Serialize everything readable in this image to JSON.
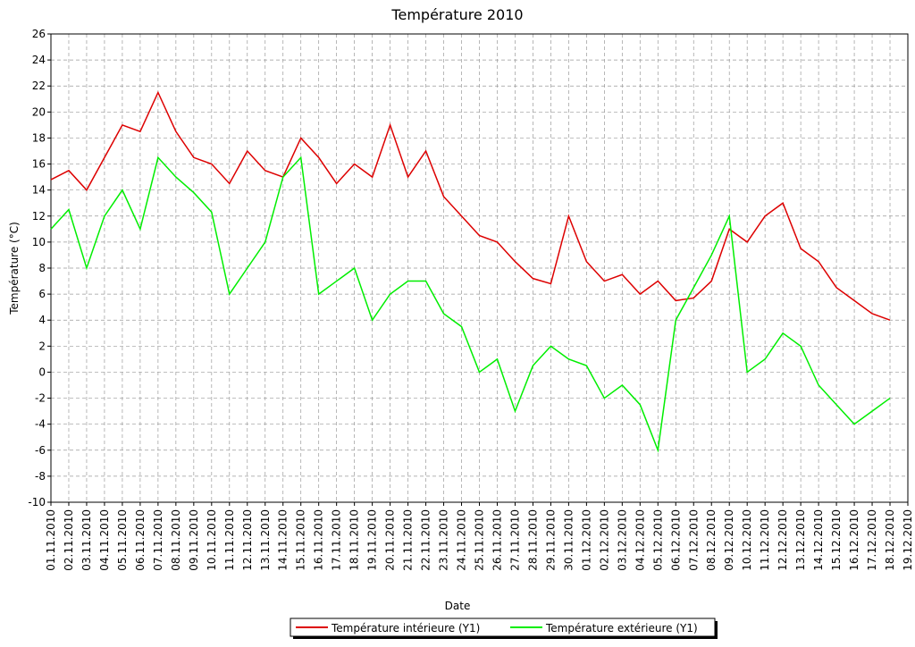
{
  "chart_data": {
    "type": "line",
    "title": "Température 2010",
    "x_label": "Date",
    "y_label": "Température (°C)",
    "x": [
      "01.11.2010",
      "02.11.2010",
      "03.11.2010",
      "04.11.2010",
      "05.11.2010",
      "06.11.2010",
      "07.11.2010",
      "08.11.2010",
      "09.11.2010",
      "10.11.2010",
      "11.11.2010",
      "12.11.2010",
      "13.11.2010",
      "14.11.2010",
      "15.11.2010",
      "16.11.2010",
      "17.11.2010",
      "18.11.2010",
      "19.11.2010",
      "20.11.2010",
      "21.11.2010",
      "22.11.2010",
      "23.11.2010",
      "24.11.2010",
      "25.11.2010",
      "26.11.2010",
      "27.11.2010",
      "28.11.2010",
      "29.11.2010",
      "30.11.2010",
      "01.12.2010",
      "02.12.2010",
      "03.12.2010",
      "04.12.2010",
      "05.12.2010",
      "06.12.2010",
      "07.12.2010",
      "08.12.2010",
      "09.12.2010",
      "10.12.2010",
      "11.12.2010",
      "12.12.2010",
      "13.12.2010",
      "14.12.2010",
      "15.12.2010",
      "16.12.2010",
      "17.12.2010",
      "18.12.2010",
      "19.12.2010"
    ],
    "series": [
      {
        "name": "Température intérieure (Y1)",
        "color": "#dd0000",
        "values": [
          14.8,
          15.5,
          14,
          16.5,
          19,
          18.5,
          21.5,
          18.5,
          16.5,
          16,
          14.5,
          17,
          15.5,
          15,
          18,
          16.5,
          14.5,
          16,
          15,
          19,
          15,
          17,
          13.5,
          12,
          10.5,
          10,
          8.5,
          7.2,
          6.8,
          12,
          8.5,
          7,
          7.5,
          6,
          7,
          5.5,
          5.7,
          7,
          11,
          10,
          12,
          13,
          9.5,
          8.5,
          6.5,
          5.5,
          4.5,
          4,
          null
        ]
      },
      {
        "name": "Température extérieure (Y1)",
        "color": "#00ee00",
        "values": [
          11,
          12.5,
          8,
          12,
          14,
          11,
          16.5,
          15,
          13.8,
          12.3,
          6,
          8,
          10,
          15,
          16.5,
          6,
          7,
          8,
          4,
          6,
          7,
          7,
          4.5,
          3.5,
          0,
          1,
          -3,
          0.5,
          2,
          1,
          0.5,
          -2,
          -1,
          -2.5,
          -6,
          4,
          6.5,
          9,
          12,
          0,
          1,
          3,
          2,
          -1,
          -2.5,
          -4,
          -3,
          -2,
          null
        ]
      }
    ],
    "ylim": [
      -10,
      26
    ],
    "yticks": [
      -10,
      -8,
      -6,
      -4,
      -2,
      0,
      2,
      4,
      6,
      8,
      10,
      12,
      14,
      16,
      18,
      20,
      22,
      24,
      26
    ],
    "grid": true
  }
}
